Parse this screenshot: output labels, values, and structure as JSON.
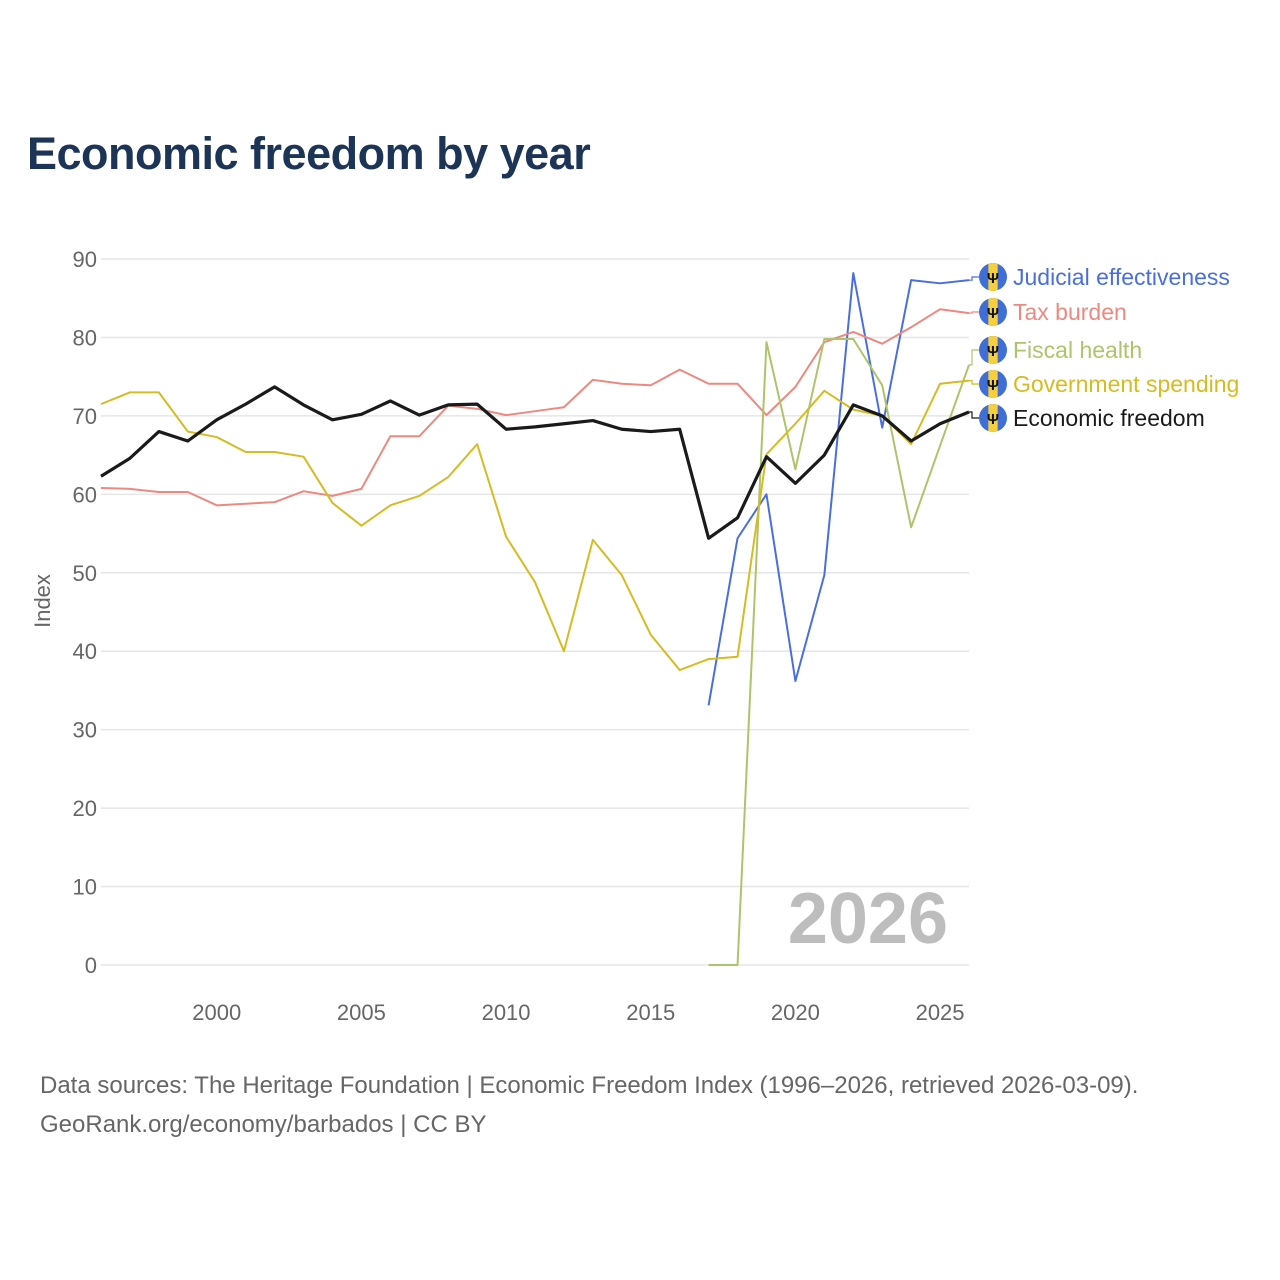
{
  "title": "Economic freedom by year",
  "footer": {
    "line1": "Data sources: The Heritage Foundation | Economic Freedom Index (1996–2026, retrieved 2026-03-09).",
    "line2": "GeoRank.org/economy/barbados | CC BY"
  },
  "chart_data": {
    "type": "line",
    "title": "Economic freedom by year",
    "xlabel": "",
    "ylabel": "Index",
    "xlim": [
      1996,
      2026
    ],
    "ylim": [
      0,
      90
    ],
    "yticks": [
      0,
      10,
      20,
      30,
      40,
      50,
      60,
      70,
      80,
      90
    ],
    "xticks": [
      2000,
      2005,
      2010,
      2015,
      2020,
      2025
    ],
    "grid": true,
    "watermark": "2026",
    "legend_placement": "right, at line ends",
    "legend_icon": "barbados-flag-icon",
    "series": [
      {
        "name": "Judicial effectiveness",
        "color": "#4a6fdc",
        "start": 2017,
        "values": [
          33.1,
          54.4,
          60.0,
          36.2,
          49.7,
          88.2,
          68.5,
          87.3,
          86.9,
          87.3
        ]
      },
      {
        "name": "Tax burden",
        "color": "#eb8a80",
        "start": 1996,
        "values": [
          60.8,
          60.7,
          60.3,
          60.3,
          58.6,
          58.8,
          59.0,
          60.4,
          59.8,
          60.7,
          67.4,
          67.4,
          71.3,
          70.9,
          70.1,
          70.6,
          71.1,
          74.6,
          74.1,
          73.9,
          75.9,
          74.1,
          74.1,
          70.1,
          73.7,
          79.4,
          80.7,
          79.2,
          81.3,
          83.6,
          83.1
        ]
      },
      {
        "name": "Fiscal health",
        "color": "#aec46a",
        "start": 2017,
        "values": [
          0,
          0,
          79.4,
          63.2,
          79.8,
          79.8,
          73.9,
          55.8,
          66.2,
          76.5
        ]
      },
      {
        "name": "Government spending",
        "color": "#d4bc22",
        "start": 1996,
        "values": [
          71.5,
          73.0,
          73.0,
          68.0,
          67.3,
          65.4,
          65.4,
          64.8,
          58.9,
          56.0,
          58.6,
          59.8,
          62.2,
          66.4,
          54.6,
          48.8,
          40.0,
          54.2,
          49.7,
          42.1,
          37.6,
          39.0,
          39.3,
          65.1,
          69.0,
          73.2,
          70.8,
          70.0,
          66.4,
          74.1,
          74.5
        ]
      },
      {
        "name": "Economic freedom",
        "color": "#1a1a1a",
        "start": 1996,
        "values": [
          62.3,
          64.6,
          68.0,
          66.8,
          69.5,
          71.5,
          73.7,
          71.4,
          69.5,
          70.2,
          71.9,
          70.1,
          71.4,
          71.5,
          68.3,
          68.6,
          69.0,
          69.4,
          68.3,
          68.0,
          68.3,
          54.4,
          57.0,
          64.8,
          61.4,
          65.0,
          71.4,
          70.0,
          66.8,
          69.0,
          70.5
        ]
      }
    ]
  }
}
